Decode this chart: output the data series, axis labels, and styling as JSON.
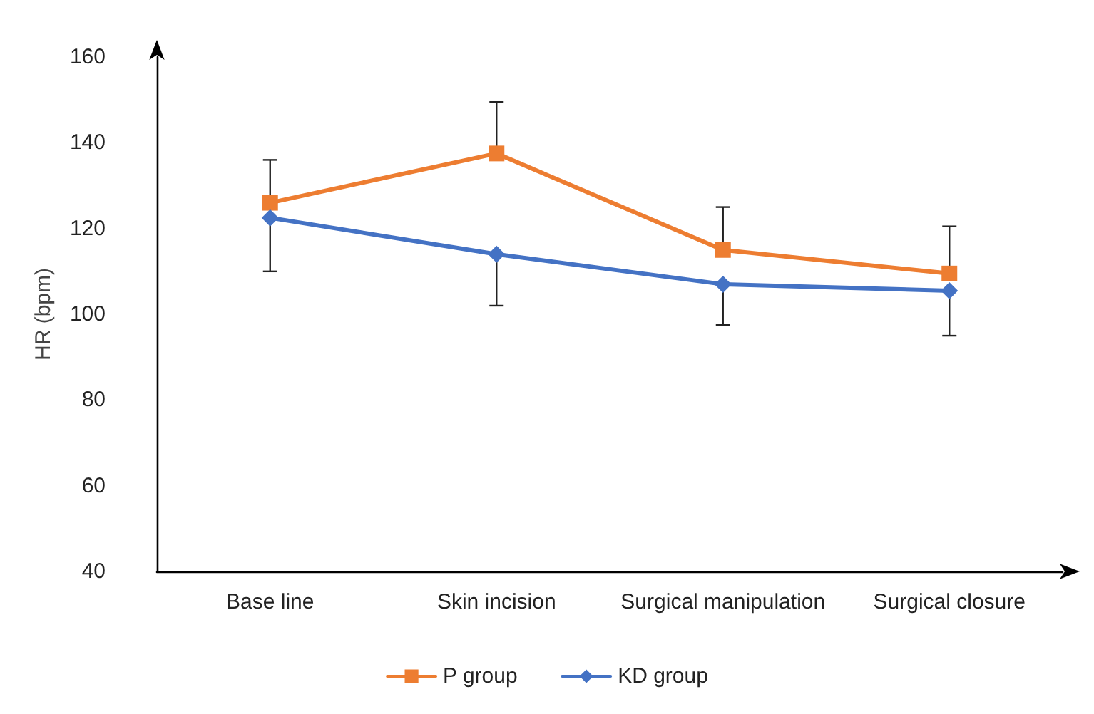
{
  "chart_data": {
    "type": "line",
    "ylabel": "HR (bpm)",
    "categories": [
      "Base line",
      "Skin incision",
      "Surgical manipulation",
      "Surgical closure"
    ],
    "series": [
      {
        "name": "P group",
        "color": "#ed7d31",
        "marker": "square",
        "values": [
          126,
          137.5,
          115,
          109.5
        ],
        "errors": [
          [
            126,
            136
          ],
          [
            137.5,
            149.5
          ],
          [
            115,
            125
          ],
          [
            109.5,
            120.5
          ]
        ]
      },
      {
        "name": "KD group",
        "color": "#4472c4",
        "marker": "diamond",
        "values": [
          122.5,
          114,
          107,
          105.5
        ],
        "errors": [
          [
            110,
            122.5
          ],
          [
            102,
            114
          ],
          [
            97.5,
            107
          ],
          [
            95,
            105.5
          ]
        ]
      }
    ],
    "ylim": [
      40,
      160
    ],
    "yticks": [
      40,
      60,
      80,
      100,
      120,
      140,
      160
    ],
    "grid": false,
    "legend": "bottom",
    "line_style": "solid"
  }
}
